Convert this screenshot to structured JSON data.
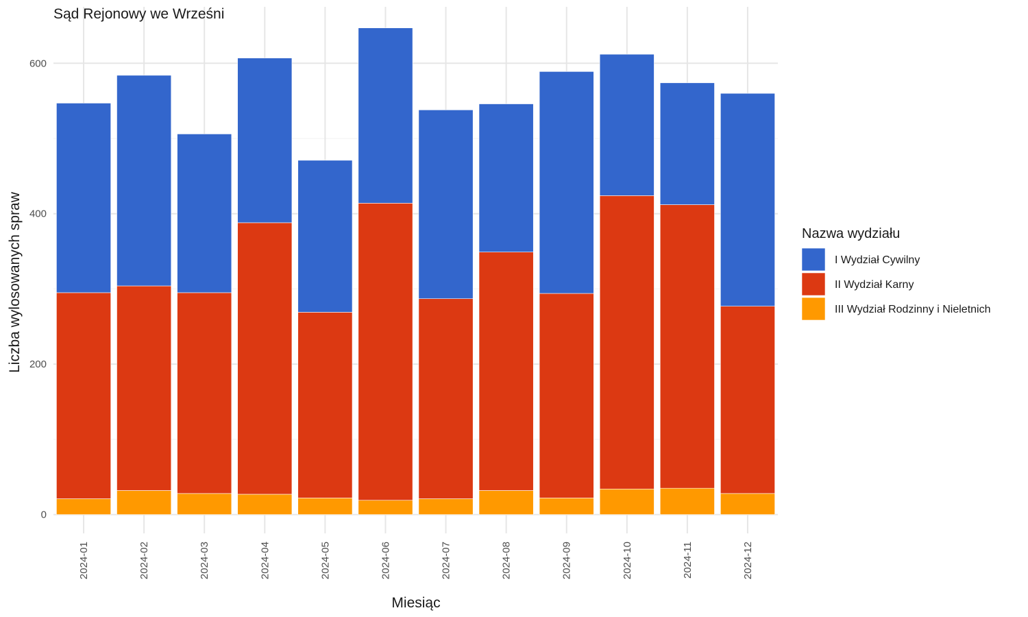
{
  "chart_data": {
    "type": "bar",
    "stacked": true,
    "title": "Sąd Rejonowy we Wrześni",
    "xlabel": "Miesiąc",
    "ylabel": "Liczba wylosowanych spraw",
    "ylim": [
      -25,
      675
    ],
    "yticks": [
      0,
      200,
      400,
      600
    ],
    "grid": true,
    "legend_position": "right",
    "legend_title": "Nazwa wydziału",
    "categories": [
      "2024-01",
      "2024-02",
      "2024-03",
      "2024-04",
      "2024-05",
      "2024-06",
      "2024-07",
      "2024-08",
      "2024-09",
      "2024-10",
      "2024-11",
      "2024-12"
    ],
    "series": [
      {
        "name": "III Wydział Rodzinny i Nieletnich",
        "color": "#FF9900",
        "values": [
          21,
          32,
          28,
          27,
          22,
          19,
          21,
          32,
          22,
          34,
          35,
          28
        ]
      },
      {
        "name": "II Wydział Karny",
        "color": "#DC3912",
        "values": [
          274,
          272,
          267,
          361,
          247,
          395,
          266,
          317,
          272,
          390,
          377,
          249
        ]
      },
      {
        "name": "I Wydział Cywilny",
        "color": "#3366CC",
        "values": [
          252,
          280,
          211,
          219,
          202,
          233,
          251,
          197,
          295,
          188,
          162,
          283
        ]
      }
    ],
    "legend_order": [
      "I Wydział Cywilny",
      "II Wydział Karny",
      "III Wydział Rodzinny i Nieletnich"
    ]
  }
}
